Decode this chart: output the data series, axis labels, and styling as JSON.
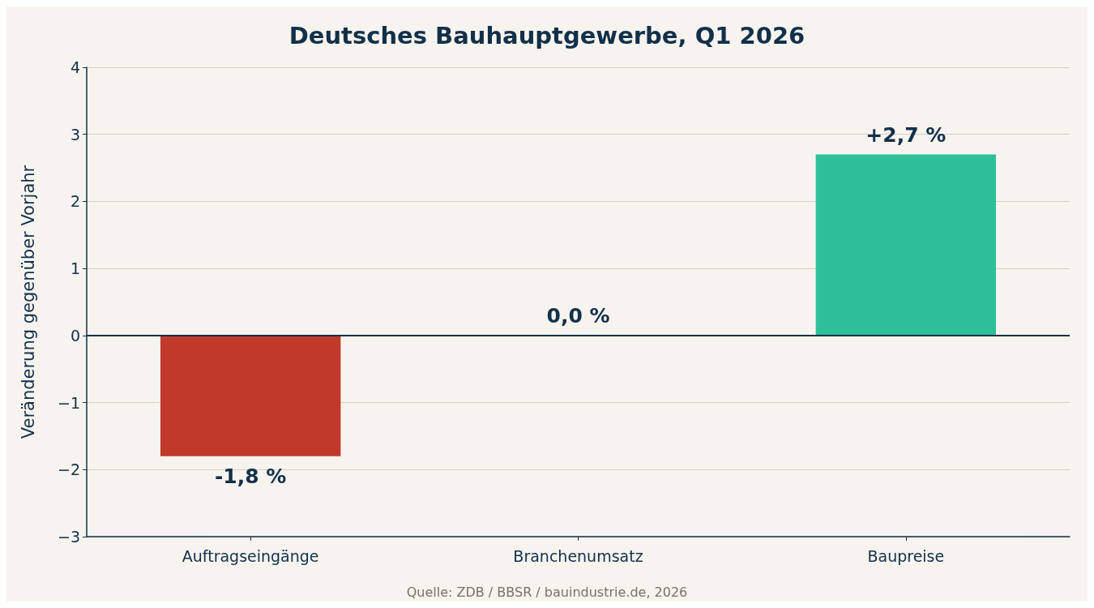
{
  "chart_data": {
    "type": "bar",
    "title": "Deutsches Bauhauptgewerbe, Q1 2026",
    "ylabel": "Veränderung gegenüber Vorjahr",
    "categories": [
      "Auftragseingänge",
      "Branchenumsatz",
      "Baupreise"
    ],
    "values": [
      -1.8,
      0.0,
      2.7
    ],
    "colors": [
      "#c0392b",
      "#7f8c8d",
      "#2ebf99"
    ],
    "value_labels": [
      "-1,8 %",
      "0,0 %",
      "+2,7 %"
    ],
    "ylim": [
      -3,
      4
    ],
    "yticks": [
      {
        "value": -3,
        "label": "−3"
      },
      {
        "value": -2,
        "label": "−2"
      },
      {
        "value": -1,
        "label": "−1"
      },
      0,
      1,
      2,
      3,
      4
    ],
    "grid": "y",
    "ref_lines": [
      {
        "axis": "y",
        "value": 0,
        "color": "#12304a"
      }
    ],
    "annotations": [
      "Quelle: ZDB / BBSR / bauindustrie.de, 2026"
    ]
  }
}
